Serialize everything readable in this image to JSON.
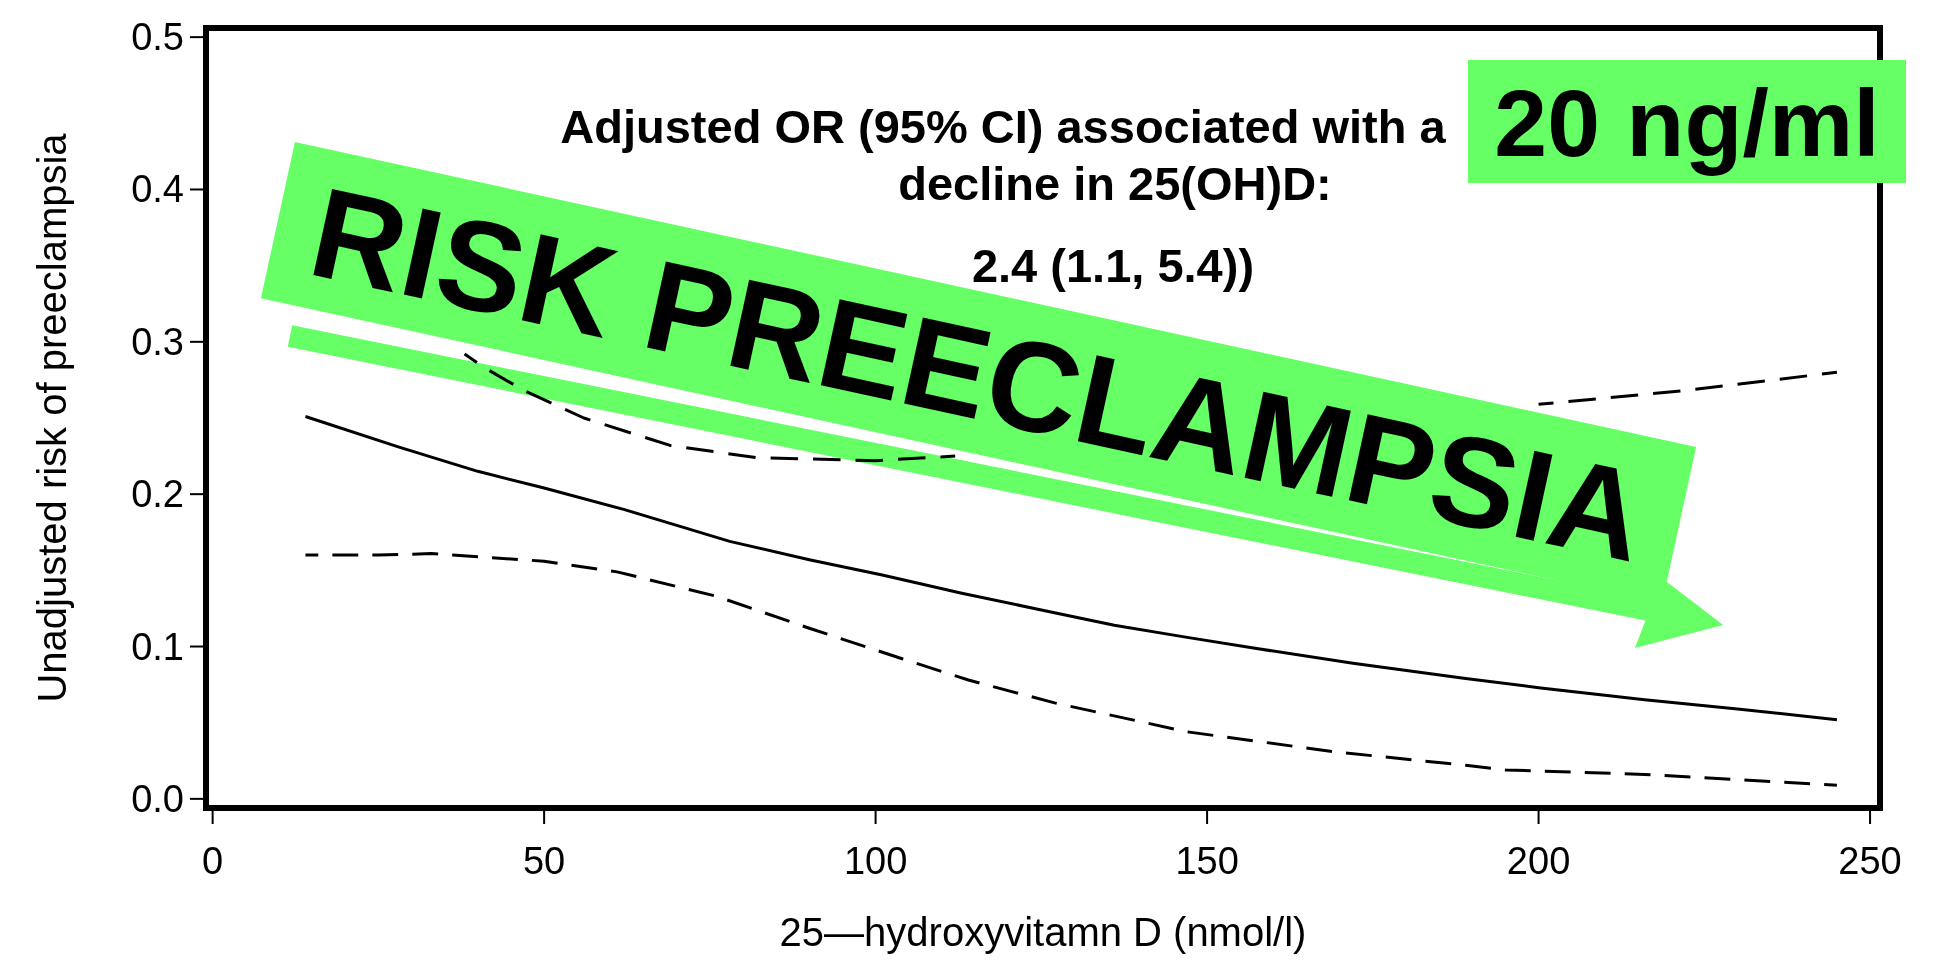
{
  "chart_data": {
    "type": "line",
    "xlabel": "25—hydroxyvitamn D (nmol/l)",
    "ylabel": "Unadjusted risk of preeclampsia",
    "xlim": [
      -1,
      251.5
    ],
    "ylim": [
      -0.006,
      0.506
    ],
    "xticks": [
      0,
      50,
      100,
      150,
      200,
      250
    ],
    "yticks": [
      {
        "value": 0,
        "label": "0.0"
      },
      0.1,
      0.2,
      0.3,
      0.4,
      0.5
    ],
    "series": [
      {
        "color": "#000000",
        "line_style": "solid",
        "x": [
          14,
          28,
          40,
          50,
          62,
          78,
          90,
          101,
          113,
          125,
          136,
          147,
          157,
          172,
          189,
          200,
          216,
          230,
          245
        ],
        "values": [
          0.251,
          0.231,
          0.215,
          0.204,
          0.19,
          0.169,
          0.157,
          0.147,
          0.135,
          0.124,
          0.114,
          0.106,
          0.099,
          0.089,
          0.079,
          0.073,
          0.065,
          0.059,
          0.052
        ]
      },
      {
        "color": "#000000",
        "line_style": "dashed",
        "x": [
          14,
          25,
          33,
          50,
          61,
          76,
          90,
          104,
          114,
          127,
          147,
          169,
          189,
          195,
          216,
          245
        ],
        "values": [
          0.16,
          0.16,
          0.161,
          0.156,
          0.149,
          0.133,
          0.112,
          0.092,
          0.078,
          0.063,
          0.044,
          0.031,
          0.022,
          0.019,
          0.016,
          0.009
        ]
      },
      {
        "color": "#000000",
        "line_style": "dashed",
        "x": [
          38,
          41,
          47,
          56,
          69,
          82,
          100,
          112,
          160,
          200,
          222,
          245
        ],
        "values": [
          0.292,
          0.283,
          0.268,
          0.25,
          0.232,
          0.224,
          0.222,
          0.225,
          null,
          0.259,
          0.268,
          0.28
        ]
      }
    ],
    "annotations": [
      "Adjusted OR (95% CI) associated with a",
      "20 ng/ml",
      "decline in 25(OH)D:",
      "2.4 (1.1, 5.4))",
      "RISK PREECLAMPSIA"
    ]
  }
}
